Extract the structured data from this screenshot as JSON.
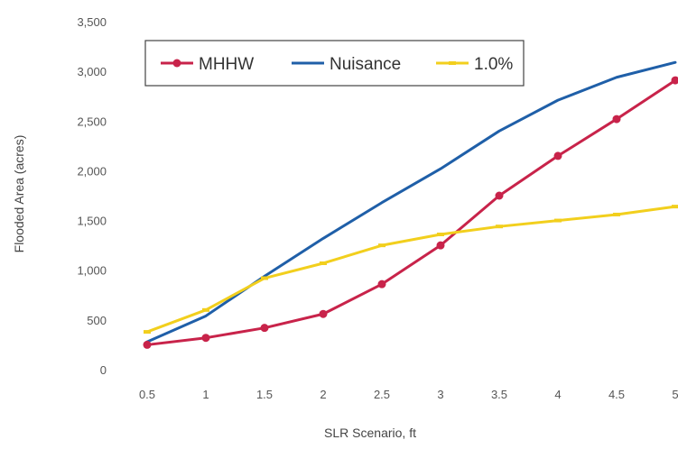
{
  "chart_data": {
    "type": "line",
    "xlabel": "SLR Scenario, ft",
    "ylabel": "Flooded Area (acres)",
    "x": [
      0.5,
      1,
      1.5,
      2,
      2.5,
      3,
      3.5,
      4,
      4.5,
      5
    ],
    "x_tick_labels": [
      "0.5",
      "1",
      "1.5",
      "2",
      "2.5",
      "3",
      "3.5",
      "4",
      "4.5",
      "5"
    ],
    "y_tick_labels": [
      "0",
      "500",
      "1,000",
      "1,500",
      "2,000",
      "2,500",
      "3,000",
      "3,500"
    ],
    "ylim": [
      0,
      3500
    ],
    "grid": false,
    "legend_position": "top-left",
    "series": [
      {
        "name": "MHHW",
        "color": "#c8234a",
        "marker": "circle",
        "values": [
          250,
          320,
          420,
          560,
          860,
          1250,
          1750,
          2150,
          2520,
          2910
        ]
      },
      {
        "name": "Nuisance",
        "color": "#1f5fa8",
        "marker": "none",
        "values": [
          280,
          540,
          940,
          1320,
          1680,
          2020,
          2400,
          2710,
          2940,
          3090
        ]
      },
      {
        "name": "1.0%",
        "color": "#f2cf1d",
        "marker": "dash",
        "values": [
          380,
          600,
          920,
          1070,
          1250,
          1360,
          1440,
          1500,
          1560,
          1640
        ]
      }
    ]
  }
}
